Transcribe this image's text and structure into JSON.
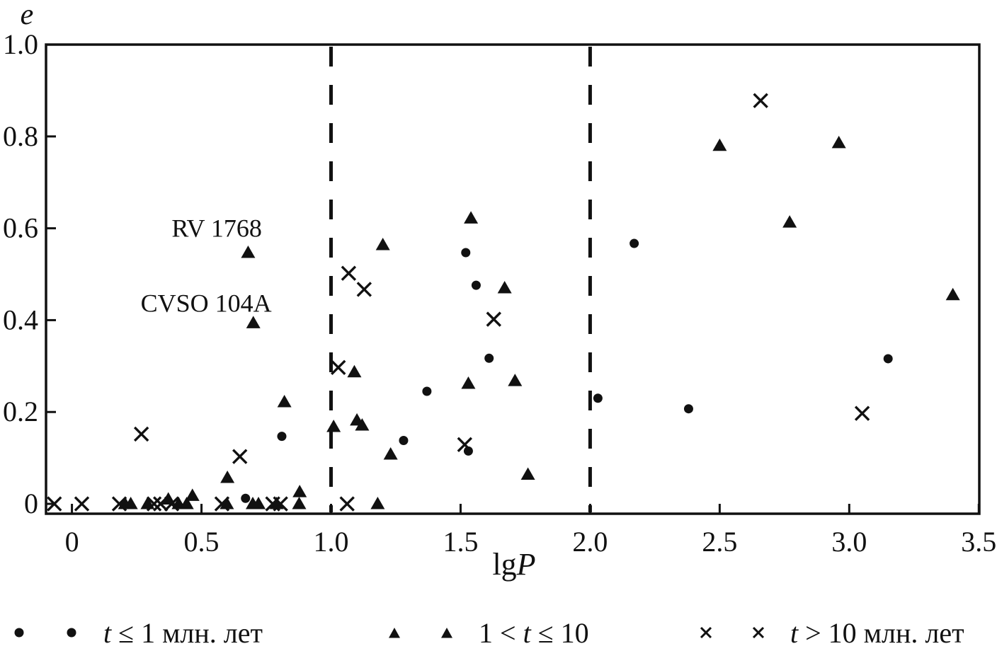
{
  "figure": {
    "background": "#ffffff",
    "ink_color": "#111111"
  },
  "chart_data": {
    "type": "scatter",
    "title": "",
    "xlabel": {
      "prefix": "lg",
      "var": "P"
    },
    "ylabel": "e",
    "xlim": [
      -0.1,
      3.502
    ],
    "ylim": [
      -0.0215,
      1.0
    ],
    "grid": false,
    "x_ticks": [
      {
        "v": 0.0,
        "label": "0"
      },
      {
        "v": 0.5,
        "label": "0.5"
      },
      {
        "v": 1.0,
        "label": "1.0"
      },
      {
        "v": 1.5,
        "label": "1.5"
      },
      {
        "v": 2.0,
        "label": "2.0"
      },
      {
        "v": 2.5,
        "label": "2.5"
      },
      {
        "v": 3.0,
        "label": "3.0"
      },
      {
        "v": 3.5,
        "label": "3.5"
      }
    ],
    "y_ticks": [
      {
        "v": 0.0,
        "label": "0"
      },
      {
        "v": 0.2,
        "label": "0.2"
      },
      {
        "v": 0.4,
        "label": "0.4"
      },
      {
        "v": 0.6,
        "label": "0.6"
      },
      {
        "v": 0.8,
        "label": "0.8"
      },
      {
        "v": 1.0,
        "label": "1.0"
      }
    ],
    "dashed_vlines": [
      1.0,
      2.0
    ],
    "series": [
      {
        "name": "t ≤ 1 млн. лет",
        "marker": "circle",
        "points": [
          [
            0.67,
            0.012
          ],
          [
            0.81,
            0.147
          ],
          [
            1.28,
            0.138
          ],
          [
            1.37,
            0.245
          ],
          [
            1.52,
            0.547
          ],
          [
            1.53,
            0.115
          ],
          [
            1.56,
            0.476
          ],
          [
            1.61,
            0.317
          ],
          [
            2.03,
            0.23
          ],
          [
            2.17,
            0.567
          ],
          [
            2.38,
            0.207
          ],
          [
            3.15,
            0.316
          ]
        ]
      },
      {
        "name": "1 < t ≤ 10",
        "marker": "triangle",
        "points": [
          [
            0.205,
            0.0
          ],
          [
            0.227,
            0.0
          ],
          [
            0.292,
            0.0
          ],
          [
            0.372,
            0.01
          ],
          [
            0.412,
            0.0
          ],
          [
            0.443,
            0.0
          ],
          [
            0.465,
            0.018
          ],
          [
            0.598,
            0.0
          ],
          [
            0.6,
            0.057
          ],
          [
            0.68,
            0.547
          ],
          [
            0.7,
            0.394
          ],
          [
            0.698,
            0.0
          ],
          [
            0.72,
            0.0
          ],
          [
            0.79,
            0.0
          ],
          [
            0.82,
            0.222
          ],
          [
            0.877,
            0.0
          ],
          [
            0.879,
            0.026
          ],
          [
            1.01,
            0.168
          ],
          [
            1.09,
            0.287
          ],
          [
            1.1,
            0.182
          ],
          [
            1.12,
            0.171
          ],
          [
            1.18,
            0.0
          ],
          [
            1.2,
            0.564
          ],
          [
            1.23,
            0.108
          ],
          [
            1.53,
            0.262
          ],
          [
            1.54,
            0.622
          ],
          [
            1.67,
            0.47
          ],
          [
            1.71,
            0.268
          ],
          [
            1.76,
            0.064
          ],
          [
            2.5,
            0.78
          ],
          [
            2.77,
            0.613
          ],
          [
            2.96,
            0.786
          ],
          [
            3.4,
            0.455
          ]
        ]
      },
      {
        "name": "t > 10 млн. лет",
        "marker": "cross",
        "points": [
          [
            -0.068,
            0.0
          ],
          [
            0.038,
            0.0
          ],
          [
            0.183,
            0.0
          ],
          [
            0.268,
            0.152
          ],
          [
            0.317,
            0.0
          ],
          [
            0.342,
            0.0
          ],
          [
            0.385,
            0.0
          ],
          [
            0.579,
            0.0
          ],
          [
            0.648,
            0.103
          ],
          [
            0.775,
            0.0
          ],
          [
            0.805,
            0.0
          ],
          [
            1.028,
            0.297
          ],
          [
            1.062,
            0.0
          ],
          [
            1.068,
            0.502
          ],
          [
            1.128,
            0.467
          ],
          [
            1.516,
            0.129
          ],
          [
            1.628,
            0.402
          ],
          [
            2.658,
            0.878
          ],
          [
            3.05,
            0.197
          ]
        ]
      }
    ],
    "annotations": [
      {
        "text": "RV 1768",
        "x": 0.559,
        "y": 0.6
      },
      {
        "text": "CVSO 104A",
        "x": 0.518,
        "y": 0.437
      }
    ]
  },
  "legend": {
    "items": [
      {
        "marker": "circle",
        "prefix": "",
        "var": "t",
        "suffix": " ≤ 1 млн. лет"
      },
      {
        "marker": "triangle",
        "prefix": "1 < ",
        "var": "t",
        "suffix": " ≤ 10"
      },
      {
        "marker": "cross",
        "prefix": "",
        "var": "t",
        "suffix": " > 10 млн. лет"
      }
    ]
  }
}
